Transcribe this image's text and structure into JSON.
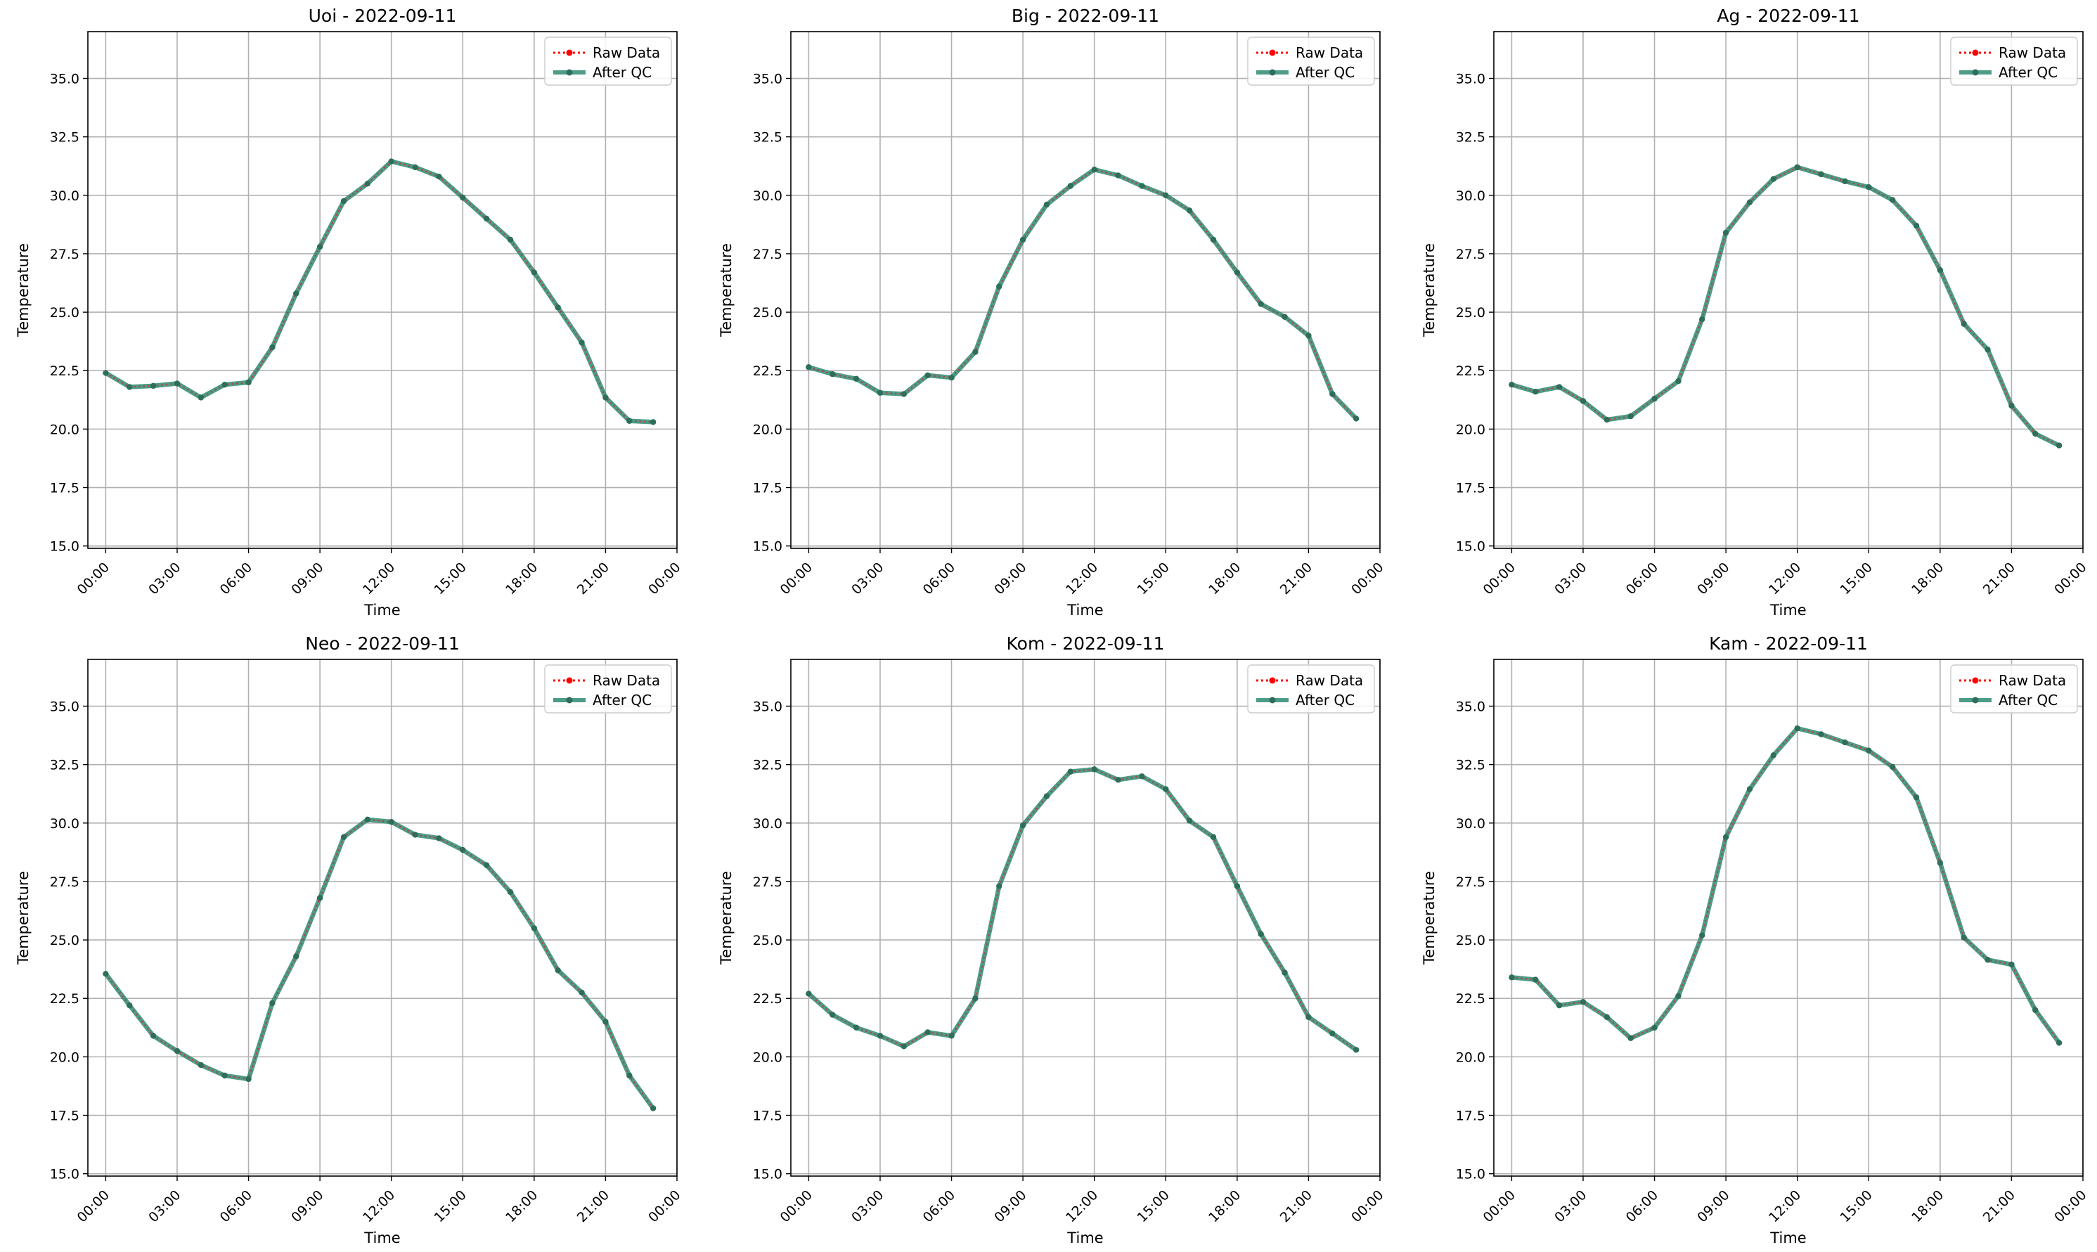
{
  "x_ticks": [
    "00:00",
    "03:00",
    "06:00",
    "09:00",
    "12:00",
    "15:00",
    "18:00",
    "21:00",
    "00:00"
  ],
  "y_ticks": [
    "15.0",
    "17.5",
    "20.0",
    "22.5",
    "25.0",
    "27.5",
    "30.0",
    "32.5",
    "35.0"
  ],
  "colors": {
    "raw": "#ff0000",
    "qc": "#2e8b72",
    "qc_marker": "#2f6e5a",
    "grid": "#b0b0b0"
  },
  "chart_data": [
    {
      "type": "line",
      "title": "Uoi - 2022-09-11",
      "xlabel": "Time",
      "ylabel": "Temperature",
      "xlim": [
        -0.75,
        24.0
      ],
      "ylim": [
        14.9,
        37.0
      ],
      "x_unit": "hour of 2022-09-11",
      "x": [
        0,
        1,
        2,
        3,
        4,
        5,
        6,
        7,
        8,
        9,
        10,
        11,
        12,
        13,
        14,
        15,
        16,
        17,
        18,
        19,
        20,
        21,
        22,
        23
      ],
      "legend": "top-right",
      "grid": true,
      "series": [
        {
          "name": "Raw Data",
          "values": [
            22.4,
            21.8,
            21.85,
            21.95,
            21.35,
            21.9,
            22.0,
            23.5,
            25.8,
            27.8,
            29.75,
            30.5,
            31.45,
            31.2,
            30.8,
            29.9,
            29.0,
            28.1,
            26.7,
            25.2,
            23.7,
            21.35,
            20.35,
            20.3
          ]
        },
        {
          "name": "After QC",
          "values": [
            22.4,
            21.8,
            21.85,
            21.95,
            21.35,
            21.9,
            22.0,
            23.5,
            25.8,
            27.8,
            29.75,
            30.5,
            31.45,
            31.2,
            30.8,
            29.9,
            29.0,
            28.1,
            26.7,
            25.2,
            23.7,
            21.35,
            20.35,
            20.3
          ]
        }
      ]
    },
    {
      "type": "line",
      "title": "Big - 2022-09-11",
      "xlabel": "Time",
      "ylabel": "Temperature",
      "xlim": [
        -0.75,
        24.0
      ],
      "ylim": [
        14.9,
        37.0
      ],
      "x_unit": "hour of 2022-09-11",
      "x": [
        0,
        1,
        2,
        3,
        4,
        5,
        6,
        7,
        8,
        9,
        10,
        11,
        12,
        13,
        14,
        15,
        16,
        17,
        18,
        19,
        20,
        21,
        22,
        23
      ],
      "legend": "top-right",
      "grid": true,
      "series": [
        {
          "name": "Raw Data",
          "values": [
            22.65,
            22.35,
            22.15,
            21.55,
            21.5,
            22.3,
            22.2,
            23.3,
            26.1,
            28.1,
            29.6,
            30.4,
            31.1,
            30.85,
            30.4,
            30.0,
            29.35,
            28.1,
            26.7,
            25.35,
            24.8,
            24.0,
            21.5,
            20.45
          ]
        },
        {
          "name": "After QC",
          "values": [
            22.65,
            22.35,
            22.15,
            21.55,
            21.5,
            22.3,
            22.2,
            23.3,
            26.1,
            28.1,
            29.6,
            30.4,
            31.1,
            30.85,
            30.4,
            30.0,
            29.35,
            28.1,
            26.7,
            25.35,
            24.8,
            24.0,
            21.5,
            20.45
          ]
        }
      ]
    },
    {
      "type": "line",
      "title": "Ag - 2022-09-11",
      "xlabel": "Time",
      "ylabel": "Temperature",
      "xlim": [
        -0.75,
        24.0
      ],
      "ylim": [
        14.9,
        37.0
      ],
      "x_unit": "hour of 2022-09-11",
      "x": [
        0,
        1,
        2,
        3,
        4,
        5,
        6,
        7,
        8,
        9,
        10,
        11,
        12,
        13,
        14,
        15,
        16,
        17,
        18,
        19,
        20,
        21,
        22,
        23
      ],
      "legend": "top-right",
      "grid": true,
      "series": [
        {
          "name": "Raw Data",
          "values": [
            21.9,
            21.6,
            21.8,
            21.2,
            20.4,
            20.55,
            21.3,
            22.05,
            24.7,
            28.4,
            29.7,
            30.7,
            31.2,
            30.9,
            30.6,
            30.35,
            29.8,
            28.7,
            26.8,
            24.5,
            23.4,
            21.0,
            19.8,
            19.3
          ]
        },
        {
          "name": "After QC",
          "values": [
            21.9,
            21.6,
            21.8,
            21.2,
            20.4,
            20.55,
            21.3,
            22.05,
            24.7,
            28.4,
            29.7,
            30.7,
            31.2,
            30.9,
            30.6,
            30.35,
            29.8,
            28.7,
            26.8,
            24.5,
            23.4,
            21.0,
            19.8,
            19.3
          ]
        }
      ]
    },
    {
      "type": "line",
      "title": "Neo - 2022-09-11",
      "xlabel": "Time",
      "ylabel": "Temperature",
      "xlim": [
        -0.75,
        24.0
      ],
      "ylim": [
        14.9,
        37.0
      ],
      "x_unit": "hour of 2022-09-11",
      "x": [
        0,
        1,
        2,
        3,
        4,
        5,
        6,
        7,
        8,
        9,
        10,
        11,
        12,
        13,
        14,
        15,
        16,
        17,
        18,
        19,
        20,
        21,
        22,
        23
      ],
      "legend": "top-right",
      "grid": true,
      "series": [
        {
          "name": "Raw Data",
          "values": [
            23.55,
            22.2,
            20.9,
            20.25,
            19.65,
            19.2,
            19.05,
            22.3,
            24.3,
            26.8,
            29.4,
            30.15,
            30.05,
            29.5,
            29.35,
            28.85,
            28.2,
            27.05,
            25.5,
            23.7,
            22.75,
            21.5,
            19.2,
            17.8
          ]
        },
        {
          "name": "After QC",
          "values": [
            23.55,
            22.2,
            20.9,
            20.25,
            19.65,
            19.2,
            19.05,
            22.3,
            24.3,
            26.8,
            29.4,
            30.15,
            30.05,
            29.5,
            29.35,
            28.85,
            28.2,
            27.05,
            25.5,
            23.7,
            22.75,
            21.5,
            19.2,
            17.8
          ]
        }
      ]
    },
    {
      "type": "line",
      "title": "Kom - 2022-09-11",
      "xlabel": "Time",
      "ylabel": "Temperature",
      "xlim": [
        -0.75,
        24.0
      ],
      "ylim": [
        14.9,
        37.0
      ],
      "x_unit": "hour of 2022-09-11",
      "x": [
        0,
        1,
        2,
        3,
        4,
        5,
        6,
        7,
        8,
        9,
        10,
        11,
        12,
        13,
        14,
        15,
        16,
        17,
        18,
        19,
        20,
        21,
        22,
        23
      ],
      "legend": "top-right",
      "grid": true,
      "series": [
        {
          "name": "Raw Data",
          "values": [
            22.7,
            21.8,
            21.25,
            20.9,
            20.45,
            21.05,
            20.9,
            22.5,
            27.3,
            29.9,
            31.15,
            32.2,
            32.3,
            31.85,
            32.0,
            31.45,
            30.1,
            29.4,
            27.3,
            25.25,
            23.6,
            21.7,
            21.0,
            20.3
          ]
        },
        {
          "name": "After QC",
          "values": [
            22.7,
            21.8,
            21.25,
            20.9,
            20.45,
            21.05,
            20.9,
            22.5,
            27.3,
            29.9,
            31.15,
            32.2,
            32.3,
            31.85,
            32.0,
            31.45,
            30.1,
            29.4,
            27.3,
            25.25,
            23.6,
            21.7,
            21.0,
            20.3
          ]
        }
      ]
    },
    {
      "type": "line",
      "title": "Kam - 2022-09-11",
      "xlabel": "Time",
      "ylabel": "Temperature",
      "xlim": [
        -0.75,
        24.0
      ],
      "ylim": [
        14.9,
        37.0
      ],
      "x_unit": "hour of 2022-09-11",
      "x": [
        0,
        1,
        2,
        3,
        4,
        5,
        6,
        7,
        8,
        9,
        10,
        11,
        12,
        13,
        14,
        15,
        16,
        17,
        18,
        19,
        20,
        21,
        22,
        23
      ],
      "legend": "top-right",
      "grid": true,
      "series": [
        {
          "name": "Raw Data",
          "values": [
            23.4,
            23.3,
            22.2,
            22.35,
            21.7,
            20.8,
            21.25,
            22.6,
            25.2,
            29.4,
            31.45,
            32.9,
            34.05,
            33.8,
            33.45,
            33.1,
            32.4,
            31.1,
            28.3,
            25.1,
            24.15,
            23.95,
            22.0,
            20.6
          ]
        },
        {
          "name": "After QC",
          "values": [
            23.4,
            23.3,
            22.2,
            22.35,
            21.7,
            20.8,
            21.25,
            22.6,
            25.2,
            29.4,
            31.45,
            32.9,
            34.05,
            33.8,
            33.45,
            33.1,
            32.4,
            31.1,
            28.3,
            25.1,
            24.15,
            23.95,
            22.0,
            20.6
          ]
        }
      ]
    }
  ]
}
